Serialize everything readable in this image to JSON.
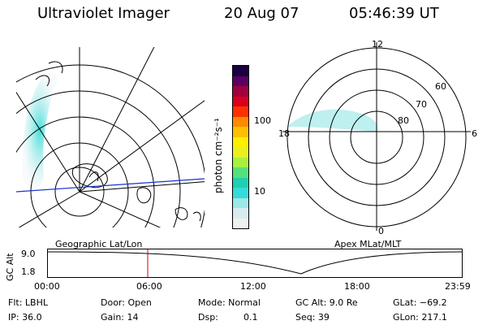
{
  "header": {
    "title": "Ultraviolet Imager",
    "date": "20 Aug 07",
    "time": "05:46:39 UT"
  },
  "colorbar": {
    "label": "photon cm⁻²s⁻¹",
    "ticks": [
      "100",
      "10"
    ],
    "colors": [
      "#f0f0f0",
      "#d8ecf0",
      "#9be8e6",
      "#33dcd8",
      "#1ecfb0",
      "#55e07a",
      "#a8f040",
      "#e8f020",
      "#fff000",
      "#ffc000",
      "#ff8a00",
      "#ff3000",
      "#d8001a",
      "#a00040",
      "#5a0060",
      "#1a0040"
    ]
  },
  "geo_panel": {
    "caption": "Geographic Lat/Lon"
  },
  "apex_panel": {
    "caption": "Apex MLat/MLT",
    "mlt_labels": [
      "12",
      "18",
      "6",
      "0"
    ],
    "mlat_labels": [
      "60",
      "70",
      "80"
    ]
  },
  "altitude_plot": {
    "ylabel": "GC Alt",
    "yticks": [
      "9.0",
      "1.8"
    ],
    "xticks": [
      "00:00",
      "06:00",
      "12:00",
      "18:00",
      "23:59"
    ],
    "marker_time": "05:46",
    "marker_color": "#cc0000"
  },
  "info": {
    "row1": [
      "Flt: LBHL",
      "Door: Open",
      "Mode: Normal",
      "GC Alt: 9.0 Re",
      "GLat: −69.2"
    ],
    "row2": [
      "IP: 36.0",
      "Gain: 14",
      "Dsp:",
      "0.1",
      "Seq: 39",
      "GLon: 217.1"
    ]
  }
}
